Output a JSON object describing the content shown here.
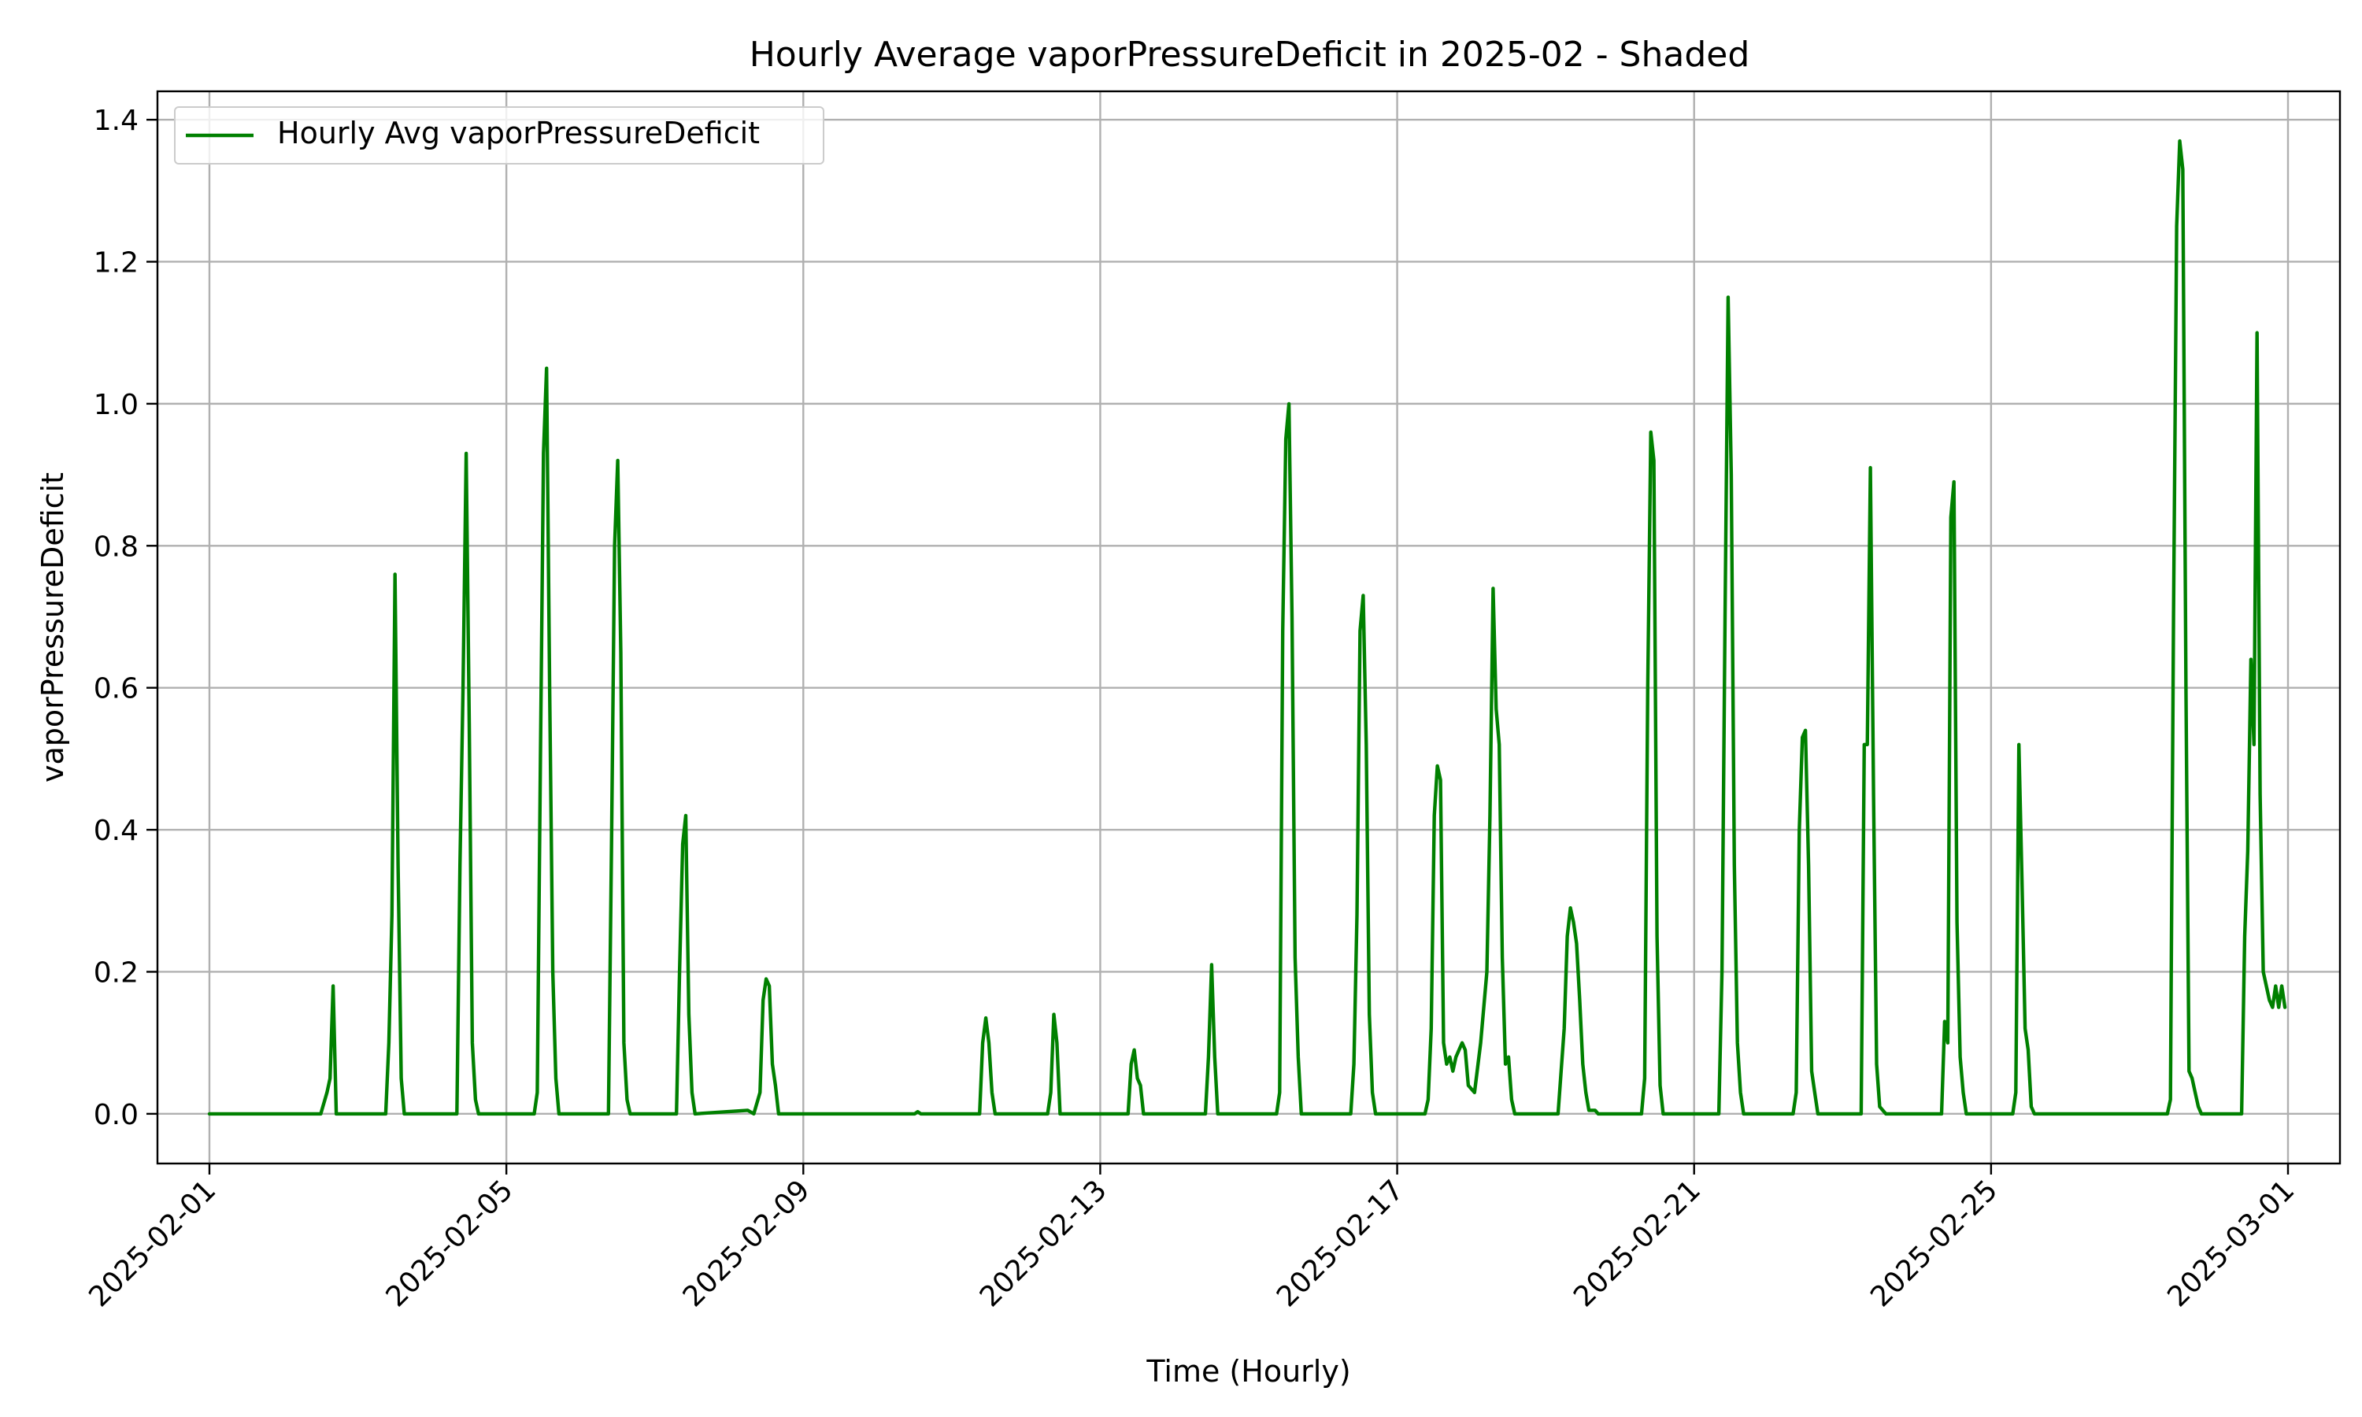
{
  "chart_data": {
    "type": "line",
    "title": "Hourly Average vaporPressureDeficit in 2025-02 - Shaded",
    "xlabel": "Time (Hourly)",
    "ylabel": "vaporPressureDeficit",
    "xlim": [
      "2025-01-31T07:12",
      "2025-03-01T16:48"
    ],
    "ylim": [
      -0.07,
      1.44
    ],
    "x_ticks": [
      "2025-02-01",
      "2025-02-05",
      "2025-02-09",
      "2025-02-13",
      "2025-02-17",
      "2025-02-21",
      "2025-02-25",
      "2025-03-01"
    ],
    "y_ticks": [
      0.0,
      0.2,
      0.4,
      0.6,
      0.8,
      1.0,
      1.2,
      1.4
    ],
    "y_tick_labels": [
      "0.0",
      "0.2",
      "0.4",
      "0.6",
      "0.8",
      "1.0",
      "1.2",
      "1.4"
    ],
    "grid": true,
    "legend": {
      "location": "upper left"
    },
    "series": [
      {
        "name": "Hourly Avg vaporPressureDeficit",
        "color": "#008000",
        "points": [
          [
            "2025-02-01T00:00",
            0
          ],
          [
            "2025-02-02T12:00",
            0
          ],
          [
            "2025-02-02T14:00",
            0.03
          ],
          [
            "2025-02-02T15:00",
            0.05
          ],
          [
            "2025-02-02T16:00",
            0.18
          ],
          [
            "2025-02-02T17:00",
            0
          ],
          [
            "2025-02-03T09:00",
            0
          ],
          [
            "2025-02-03T10:00",
            0.1
          ],
          [
            "2025-02-03T11:00",
            0.28
          ],
          [
            "2025-02-03T12:00",
            0.76
          ],
          [
            "2025-02-03T13:00",
            0.35
          ],
          [
            "2025-02-03T14:00",
            0.05
          ],
          [
            "2025-02-03T15:00",
            0
          ],
          [
            "2025-02-04T08:00",
            0
          ],
          [
            "2025-02-04T09:00",
            0.35
          ],
          [
            "2025-02-04T10:00",
            0.6
          ],
          [
            "2025-02-04T11:00",
            0.93
          ],
          [
            "2025-02-04T12:00",
            0.55
          ],
          [
            "2025-02-04T13:00",
            0.1
          ],
          [
            "2025-02-04T14:00",
            0.02
          ],
          [
            "2025-02-04T15:00",
            0
          ],
          [
            "2025-02-05T09:00",
            0
          ],
          [
            "2025-02-05T10:00",
            0.03
          ],
          [
            "2025-02-05T11:00",
            0.5
          ],
          [
            "2025-02-05T12:00",
            0.93
          ],
          [
            "2025-02-05T13:00",
            1.05
          ],
          [
            "2025-02-05T14:00",
            0.6
          ],
          [
            "2025-02-05T15:00",
            0.2
          ],
          [
            "2025-02-05T16:00",
            0.05
          ],
          [
            "2025-02-05T17:00",
            0
          ],
          [
            "2025-02-06T09:00",
            0
          ],
          [
            "2025-02-06T10:00",
            0.38
          ],
          [
            "2025-02-06T11:00",
            0.8
          ],
          [
            "2025-02-06T12:00",
            0.92
          ],
          [
            "2025-02-06T13:00",
            0.65
          ],
          [
            "2025-02-06T14:00",
            0.1
          ],
          [
            "2025-02-06T15:00",
            0.02
          ],
          [
            "2025-02-06T16:00",
            0
          ],
          [
            "2025-02-07T07:00",
            0
          ],
          [
            "2025-02-07T08:00",
            0.2
          ],
          [
            "2025-02-07T09:00",
            0.38
          ],
          [
            "2025-02-07T10:00",
            0.42
          ],
          [
            "2025-02-07T11:00",
            0.14
          ],
          [
            "2025-02-07T12:00",
            0.03
          ],
          [
            "2025-02-07T13:00",
            0
          ],
          [
            "2025-02-08T06:00",
            0.005
          ],
          [
            "2025-02-08T08:00",
            0
          ],
          [
            "2025-02-08T10:00",
            0.03
          ],
          [
            "2025-02-08T11:00",
            0.16
          ],
          [
            "2025-02-08T12:00",
            0.19
          ],
          [
            "2025-02-08T13:00",
            0.18
          ],
          [
            "2025-02-08T14:00",
            0.07
          ],
          [
            "2025-02-08T15:00",
            0.04
          ],
          [
            "2025-02-08T16:00",
            0
          ],
          [
            "2025-02-10T12:00",
            0
          ],
          [
            "2025-02-10T13:00",
            0.003
          ],
          [
            "2025-02-10T14:00",
            0
          ],
          [
            "2025-02-11T09:00",
            0
          ],
          [
            "2025-02-11T10:00",
            0.1
          ],
          [
            "2025-02-11T11:00",
            0.135
          ],
          [
            "2025-02-11T12:00",
            0.1
          ],
          [
            "2025-02-11T13:00",
            0.03
          ],
          [
            "2025-02-11T14:00",
            0
          ],
          [
            "2025-02-12T07:00",
            0
          ],
          [
            "2025-02-12T08:00",
            0.03
          ],
          [
            "2025-02-12T09:00",
            0.14
          ],
          [
            "2025-02-12T10:00",
            0.1
          ],
          [
            "2025-02-12T11:00",
            0
          ],
          [
            "2025-02-13T09:00",
            0
          ],
          [
            "2025-02-13T10:00",
            0.07
          ],
          [
            "2025-02-13T11:00",
            0.09
          ],
          [
            "2025-02-13T12:00",
            0.05
          ],
          [
            "2025-02-13T13:00",
            0.04
          ],
          [
            "2025-02-13T14:00",
            0
          ],
          [
            "2025-02-14T10:00",
            0
          ],
          [
            "2025-02-14T11:00",
            0.08
          ],
          [
            "2025-02-14T12:00",
            0.21
          ],
          [
            "2025-02-14T13:00",
            0.08
          ],
          [
            "2025-02-14T14:00",
            0
          ],
          [
            "2025-02-15T09:00",
            0
          ],
          [
            "2025-02-15T10:00",
            0.03
          ],
          [
            "2025-02-15T11:00",
            0.68
          ],
          [
            "2025-02-15T12:00",
            0.95
          ],
          [
            "2025-02-15T13:00",
            1.0
          ],
          [
            "2025-02-15T14:00",
            0.7
          ],
          [
            "2025-02-15T15:00",
            0.22
          ],
          [
            "2025-02-15T16:00",
            0.08
          ],
          [
            "2025-02-15T17:00",
            0
          ],
          [
            "2025-02-16T09:00",
            0
          ],
          [
            "2025-02-16T10:00",
            0.07
          ],
          [
            "2025-02-16T11:00",
            0.28
          ],
          [
            "2025-02-16T12:00",
            0.68
          ],
          [
            "2025-02-16T13:00",
            0.73
          ],
          [
            "2025-02-16T14:00",
            0.52
          ],
          [
            "2025-02-16T15:00",
            0.14
          ],
          [
            "2025-02-16T16:00",
            0.03
          ],
          [
            "2025-02-16T17:00",
            0
          ],
          [
            "2025-02-17T09:00",
            0
          ],
          [
            "2025-02-17T10:00",
            0.02
          ],
          [
            "2025-02-17T11:00",
            0.12
          ],
          [
            "2025-02-17T12:00",
            0.42
          ],
          [
            "2025-02-17T13:00",
            0.49
          ],
          [
            "2025-02-17T14:00",
            0.47
          ],
          [
            "2025-02-17T15:00",
            0.1
          ],
          [
            "2025-02-17T16:00",
            0.07
          ],
          [
            "2025-02-17T17:00",
            0.08
          ],
          [
            "2025-02-17T18:00",
            0.06
          ],
          [
            "2025-02-17T19:00",
            0.08
          ],
          [
            "2025-02-17T20:00",
            0.09
          ],
          [
            "2025-02-17T21:00",
            0.1
          ],
          [
            "2025-02-17T22:00",
            0.09
          ],
          [
            "2025-02-17T23:00",
            0.04
          ],
          [
            "2025-02-18T01:00",
            0.03
          ],
          [
            "2025-02-18T03:00",
            0.1
          ],
          [
            "2025-02-18T05:00",
            0.2
          ],
          [
            "2025-02-18T06:00",
            0.42
          ],
          [
            "2025-02-18T07:00",
            0.74
          ],
          [
            "2025-02-18T08:00",
            0.57
          ],
          [
            "2025-02-18T09:00",
            0.52
          ],
          [
            "2025-02-18T10:00",
            0.22
          ],
          [
            "2025-02-18T11:00",
            0.07
          ],
          [
            "2025-02-18T12:00",
            0.08
          ],
          [
            "2025-02-18T13:00",
            0.02
          ],
          [
            "2025-02-18T14:00",
            0
          ],
          [
            "2025-02-19T04:00",
            0
          ],
          [
            "2025-02-19T06:00",
            0.12
          ],
          [
            "2025-02-19T07:00",
            0.25
          ],
          [
            "2025-02-19T08:00",
            0.29
          ],
          [
            "2025-02-19T09:00",
            0.27
          ],
          [
            "2025-02-19T10:00",
            0.24
          ],
          [
            "2025-02-19T11:00",
            0.16
          ],
          [
            "2025-02-19T12:00",
            0.07
          ],
          [
            "2025-02-19T13:00",
            0.03
          ],
          [
            "2025-02-19T14:00",
            0.005
          ],
          [
            "2025-02-19T16:00",
            0.005
          ],
          [
            "2025-02-19T17:00",
            0
          ],
          [
            "2025-02-20T07:00",
            0
          ],
          [
            "2025-02-20T08:00",
            0.05
          ],
          [
            "2025-02-20T09:00",
            0.6
          ],
          [
            "2025-02-20T10:00",
            0.96
          ],
          [
            "2025-02-20T11:00",
            0.92
          ],
          [
            "2025-02-20T12:00",
            0.25
          ],
          [
            "2025-02-20T13:00",
            0.04
          ],
          [
            "2025-02-20T14:00",
            0
          ],
          [
            "2025-02-21T08:00",
            0
          ],
          [
            "2025-02-21T09:00",
            0.2
          ],
          [
            "2025-02-21T10:00",
            0.7
          ],
          [
            "2025-02-21T11:00",
            1.15
          ],
          [
            "2025-02-21T12:00",
            0.9
          ],
          [
            "2025-02-21T13:00",
            0.35
          ],
          [
            "2025-02-21T14:00",
            0.1
          ],
          [
            "2025-02-21T15:00",
            0.03
          ],
          [
            "2025-02-21T16:00",
            0
          ],
          [
            "2025-02-22T08:00",
            0
          ],
          [
            "2025-02-22T09:00",
            0.03
          ],
          [
            "2025-02-22T10:00",
            0.4
          ],
          [
            "2025-02-22T11:00",
            0.53
          ],
          [
            "2025-02-22T12:00",
            0.54
          ],
          [
            "2025-02-22T13:00",
            0.35
          ],
          [
            "2025-02-22T14:00",
            0.06
          ],
          [
            "2025-02-22T15:00",
            0.03
          ],
          [
            "2025-02-22T16:00",
            0
          ],
          [
            "2025-02-23T06:00",
            0
          ],
          [
            "2025-02-23T07:00",
            0.52
          ],
          [
            "2025-02-23T08:00",
            0.52
          ],
          [
            "2025-02-23T09:00",
            0.91
          ],
          [
            "2025-02-23T10:00",
            0.45
          ],
          [
            "2025-02-23T11:00",
            0.07
          ],
          [
            "2025-02-23T12:00",
            0.01
          ],
          [
            "2025-02-23T13:00",
            0.005
          ],
          [
            "2025-02-23T14:00",
            0
          ],
          [
            "2025-02-24T08:00",
            0
          ],
          [
            "2025-02-24T09:00",
            0.13
          ],
          [
            "2025-02-24T10:00",
            0.1
          ],
          [
            "2025-02-24T11:00",
            0.84
          ],
          [
            "2025-02-24T12:00",
            0.89
          ],
          [
            "2025-02-24T13:00",
            0.27
          ],
          [
            "2025-02-24T14:00",
            0.08
          ],
          [
            "2025-02-24T15:00",
            0.03
          ],
          [
            "2025-02-24T16:00",
            0
          ],
          [
            "2025-02-25T07:00",
            0
          ],
          [
            "2025-02-25T08:00",
            0.03
          ],
          [
            "2025-02-25T09:00",
            0.52
          ],
          [
            "2025-02-25T10:00",
            0.33
          ],
          [
            "2025-02-25T11:00",
            0.12
          ],
          [
            "2025-02-25T12:00",
            0.09
          ],
          [
            "2025-02-25T13:00",
            0.01
          ],
          [
            "2025-02-25T14:00",
            0
          ],
          [
            "2025-02-27T09:00",
            0
          ],
          [
            "2025-02-27T10:00",
            0.02
          ],
          [
            "2025-02-27T11:00",
            0.7
          ],
          [
            "2025-02-27T12:00",
            1.25
          ],
          [
            "2025-02-27T13:00",
            1.37
          ],
          [
            "2025-02-27T14:00",
            1.33
          ],
          [
            "2025-02-27T15:00",
            0.6
          ],
          [
            "2025-02-27T16:00",
            0.06
          ],
          [
            "2025-02-27T17:00",
            0.05
          ],
          [
            "2025-02-27T18:00",
            0.03
          ],
          [
            "2025-02-27T19:00",
            0.01
          ],
          [
            "2025-02-27T20:00",
            0
          ],
          [
            "2025-02-28T09:00",
            0
          ],
          [
            "2025-02-28T10:00",
            0.25
          ],
          [
            "2025-02-28T11:00",
            0.37
          ],
          [
            "2025-02-28T12:00",
            0.64
          ],
          [
            "2025-02-28T13:00",
            0.52
          ],
          [
            "2025-02-28T14:00",
            1.1
          ],
          [
            "2025-02-28T15:00",
            0.45
          ],
          [
            "2025-02-28T16:00",
            0.2
          ],
          [
            "2025-02-28T17:00",
            0.18
          ],
          [
            "2025-02-28T18:00",
            0.16
          ],
          [
            "2025-02-28T19:00",
            0.15
          ],
          [
            "2025-02-28T20:00",
            0.18
          ],
          [
            "2025-02-28T21:00",
            0.15
          ],
          [
            "2025-02-28T22:00",
            0.18
          ],
          [
            "2025-02-28T23:00",
            0.15
          ]
        ]
      }
    ]
  }
}
